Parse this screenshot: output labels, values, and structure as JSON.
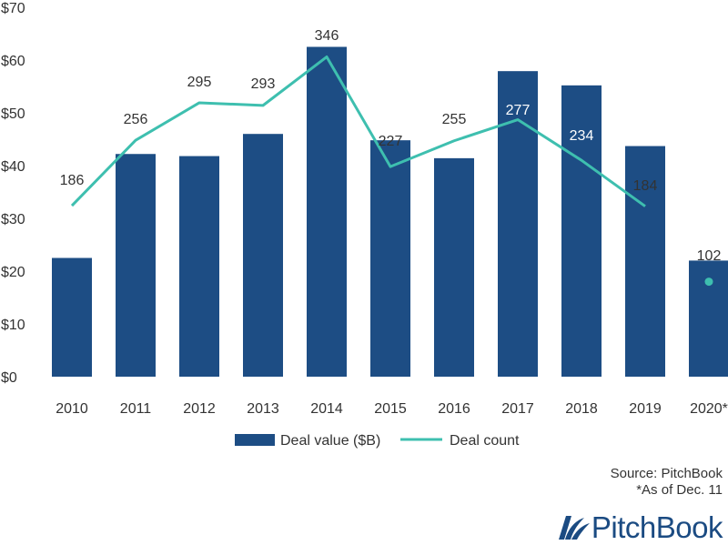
{
  "chart_data": {
    "type": "bar",
    "categories": [
      "2010",
      "2011",
      "2012",
      "2013",
      "2014",
      "2015",
      "2016",
      "2017",
      "2018",
      "2019",
      "2020*"
    ],
    "y_tick_labels": [
      "$0",
      "$10",
      "$20",
      "$30",
      "$40",
      "$50",
      "$60",
      "$70"
    ],
    "ylim": [
      0,
      70
    ],
    "grid": false,
    "legend_position": "bottom",
    "series": [
      {
        "name": "Deal value ($B)",
        "type": "bar",
        "color": "#1d4d84",
        "values": [
          22.5,
          42.2,
          41.8,
          46.0,
          62.5,
          44.8,
          41.4,
          57.9,
          55.2,
          43.7,
          22.0
        ]
      },
      {
        "name": "Deal count",
        "type": "line",
        "color": "#3ebfaf",
        "counts": [
          186,
          256,
          295,
          293,
          346,
          227,
          255,
          277,
          234,
          184,
          102
        ],
        "plot_values": [
          32.4,
          44.8,
          51.9,
          51.4,
          60.6,
          39.8,
          44.7,
          48.7,
          41.0,
          32.3,
          18.0
        ],
        "count_labels": [
          "186",
          "256",
          "295",
          "293",
          "346",
          "227",
          "255",
          "277",
          "234",
          "184",
          "102"
        ]
      }
    ],
    "source_lines": [
      "Source: PitchBook",
      "*As of Dec. 11"
    ]
  },
  "brand": {
    "name": "PitchBook"
  }
}
